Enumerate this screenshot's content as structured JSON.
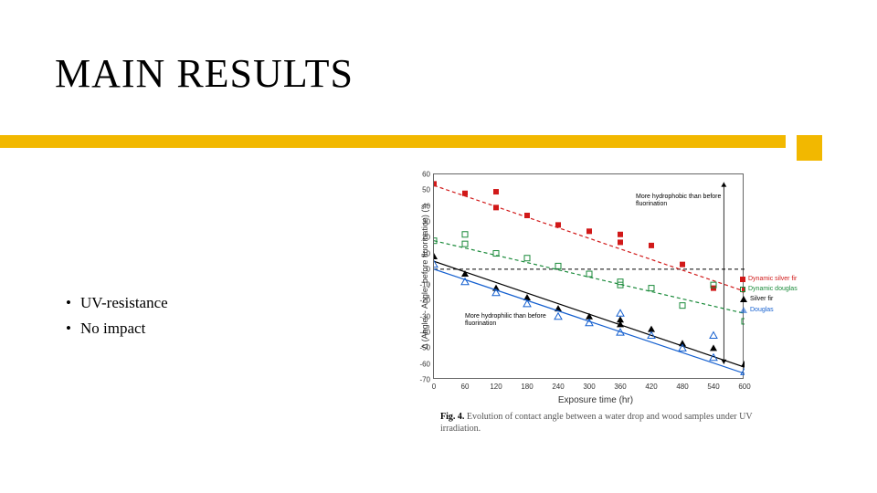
{
  "title": "MAIN RESULTS",
  "accent_color": "#f2b800",
  "bullets": {
    "b1": "UV-resistance",
    "b2": "No impact"
  },
  "chart": {
    "type": "scatter-with-trendlines",
    "ylabel": "Δ (Angleₜ - Angle_before fluorination) (°)",
    "xlabel": "Exposure time (hr)",
    "caption_bold": "Fig. 4.",
    "caption_rest": " Evolution of contact angle between a water drop and wood samples under UV irradiation.",
    "xlim": [
      0,
      600
    ],
    "xtick_step": 60,
    "ylim": [
      -70,
      60
    ],
    "ytick_step": 10,
    "border_color": "#666666",
    "zero_line_color": "#000000",
    "annot_upper": "More hydrophobic than before fluorination",
    "annot_lower": "More hydrophilic than before fluorination",
    "series": {
      "dyn_silver_fir": {
        "label": "Dynamic silver fir",
        "color": "#d11919",
        "marker": "square-filled",
        "line_dash": "4 3",
        "line_width": 1.2,
        "points": [
          [
            0,
            54
          ],
          [
            60,
            48
          ],
          [
            120,
            39
          ],
          [
            120,
            49
          ],
          [
            180,
            34
          ],
          [
            240,
            28
          ],
          [
            300,
            24
          ],
          [
            360,
            22
          ],
          [
            360,
            17
          ],
          [
            420,
            15
          ],
          [
            480,
            3
          ],
          [
            540,
            -12
          ],
          [
            600,
            -13
          ]
        ],
        "trend": [
          [
            0,
            53
          ],
          [
            600,
            -14
          ]
        ]
      },
      "dyn_douglas": {
        "label": "Dynamic douglas",
        "color": "#1a8a3a",
        "marker": "square-open",
        "line_dash": "4 3",
        "line_width": 1.2,
        "points": [
          [
            0,
            18
          ],
          [
            60,
            16
          ],
          [
            60,
            22
          ],
          [
            120,
            10
          ],
          [
            180,
            7
          ],
          [
            240,
            2
          ],
          [
            300,
            -3
          ],
          [
            360,
            -10
          ],
          [
            360,
            -8
          ],
          [
            420,
            -12
          ],
          [
            480,
            -23
          ],
          [
            540,
            -10
          ],
          [
            600,
            -33
          ]
        ],
        "trend": [
          [
            0,
            18
          ],
          [
            600,
            -28
          ]
        ]
      },
      "silver_fir": {
        "label": "Silver fir",
        "color": "#000000",
        "marker": "triangle-filled",
        "line_dash": "none",
        "line_width": 1.2,
        "points": [
          [
            0,
            8
          ],
          [
            60,
            -3
          ],
          [
            120,
            -12
          ],
          [
            180,
            -18
          ],
          [
            240,
            -25
          ],
          [
            300,
            -30
          ],
          [
            360,
            -35
          ],
          [
            360,
            -32
          ],
          [
            420,
            -38
          ],
          [
            480,
            -47
          ],
          [
            540,
            -50
          ],
          [
            600,
            -60
          ]
        ],
        "trend": [
          [
            0,
            5
          ],
          [
            600,
            -62
          ]
        ]
      },
      "douglas": {
        "label": "Douglas",
        "color": "#1560d0",
        "marker": "triangle-open",
        "line_dash": "none",
        "line_width": 1.2,
        "points": [
          [
            0,
            3
          ],
          [
            60,
            -8
          ],
          [
            120,
            -15
          ],
          [
            180,
            -22
          ],
          [
            240,
            -30
          ],
          [
            300,
            -34
          ],
          [
            360,
            -40
          ],
          [
            360,
            -28
          ],
          [
            420,
            -42
          ],
          [
            480,
            -50
          ],
          [
            540,
            -56
          ],
          [
            540,
            -42
          ],
          [
            600,
            -65
          ]
        ],
        "trend": [
          [
            0,
            0
          ],
          [
            600,
            -66
          ]
        ]
      }
    }
  }
}
